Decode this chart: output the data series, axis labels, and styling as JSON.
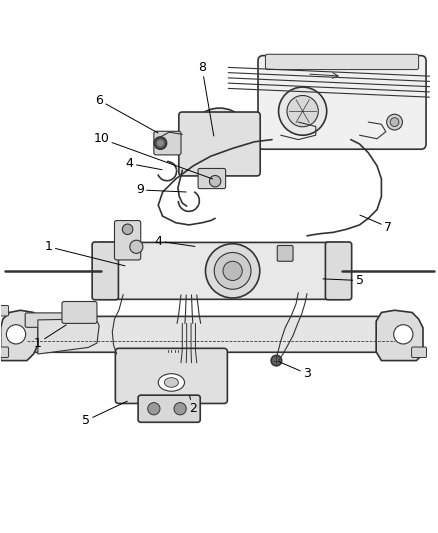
{
  "bg_color": "#ffffff",
  "line_color": "#333333",
  "label_color": "#000000",
  "figsize": [
    4.39,
    5.33
  ],
  "dpi": 100,
  "labels": {
    "6": [
      0.255,
      0.845,
      0.245,
      0.88
    ],
    "8": [
      0.5,
      0.95,
      0.5,
      0.967
    ],
    "10": [
      0.265,
      0.79,
      0.24,
      0.8
    ],
    "4a": [
      0.31,
      0.725,
      0.275,
      0.738
    ],
    "9": [
      0.35,
      0.668,
      0.32,
      0.68
    ],
    "7": [
      0.845,
      0.545,
      0.88,
      0.54
    ],
    "1a": [
      0.175,
      0.525,
      0.115,
      0.545
    ],
    "4b": [
      0.38,
      0.53,
      0.348,
      0.545
    ],
    "5a": [
      0.76,
      0.472,
      0.82,
      0.468
    ],
    "1b": [
      0.165,
      0.33,
      0.1,
      0.32
    ],
    "2": [
      0.53,
      0.215,
      0.535,
      0.185
    ],
    "3": [
      0.645,
      0.275,
      0.695,
      0.258
    ],
    "5b": [
      0.245,
      0.138,
      0.2,
      0.11
    ]
  }
}
